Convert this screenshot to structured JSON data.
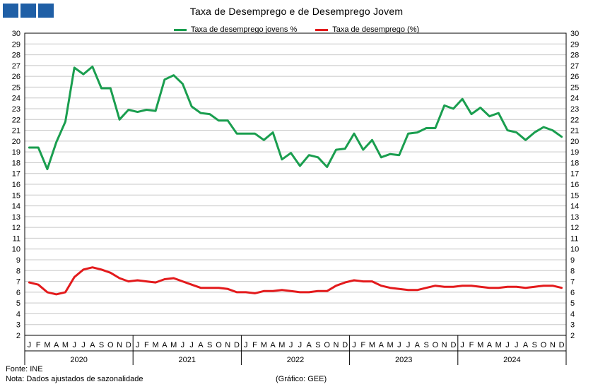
{
  "header": {
    "logo_label": "logo"
  },
  "footer": {
    "source": "Fonte: INE",
    "note": "Nota: Dados ajustados de sazonalidade",
    "credit": "(Gráfico: GEE)"
  },
  "chart_data": {
    "type": "line",
    "title": "Taxa de Desemprego e de Desemprego Jovem",
    "xlabel": "",
    "ylabel": "",
    "ylim": [
      2,
      30
    ],
    "y_ticks": [
      2,
      3,
      4,
      5,
      6,
      7,
      8,
      9,
      10,
      11,
      12,
      13,
      14,
      15,
      16,
      17,
      18,
      19,
      20,
      21,
      22,
      23,
      24,
      25,
      26,
      27,
      28,
      29,
      30
    ],
    "grid": true,
    "legend_position": "top-center",
    "month_labels": [
      "J",
      "F",
      "M",
      "A",
      "M",
      "J",
      "J",
      "A",
      "S",
      "O",
      "N",
      "D"
    ],
    "years": [
      "2020",
      "2021",
      "2022",
      "2023",
      "2024"
    ],
    "series": [
      {
        "name": "Taxa de desemprego jovens %",
        "color": "#1a9e4f",
        "values": [
          19.4,
          19.4,
          17.4,
          19.9,
          21.8,
          26.8,
          26.2,
          26.9,
          24.9,
          24.9,
          22.0,
          22.9,
          22.7,
          22.9,
          22.8,
          25.7,
          26.1,
          25.3,
          23.2,
          22.6,
          22.5,
          21.9,
          21.9,
          20.7,
          20.7,
          20.7,
          20.1,
          20.8,
          18.3,
          18.9,
          17.7,
          18.7,
          18.5,
          17.6,
          19.2,
          19.3,
          20.7,
          19.2,
          20.1,
          18.5,
          18.8,
          18.7,
          20.7,
          20.8,
          21.2,
          21.2,
          23.3,
          23.0,
          23.9,
          22.5,
          23.1,
          22.3,
          22.6,
          21.0,
          20.8,
          20.1,
          20.8,
          21.3,
          21.0,
          20.4
        ]
      },
      {
        "name": "Taxa de desemprego (%)",
        "color": "#e31a1c",
        "values": [
          6.9,
          6.7,
          6.0,
          5.8,
          6.0,
          7.4,
          8.1,
          8.3,
          8.1,
          7.8,
          7.3,
          7.0,
          7.1,
          7.0,
          6.9,
          7.2,
          7.3,
          7.0,
          6.7,
          6.4,
          6.4,
          6.4,
          6.3,
          6.0,
          6.0,
          5.9,
          6.1,
          6.1,
          6.2,
          6.1,
          6.0,
          6.0,
          6.1,
          6.1,
          6.6,
          6.9,
          7.1,
          7.0,
          7.0,
          6.6,
          6.4,
          6.3,
          6.2,
          6.2,
          6.4,
          6.6,
          6.5,
          6.5,
          6.6,
          6.6,
          6.5,
          6.4,
          6.4,
          6.5,
          6.5,
          6.4,
          6.5,
          6.6,
          6.6,
          6.4
        ]
      }
    ]
  }
}
